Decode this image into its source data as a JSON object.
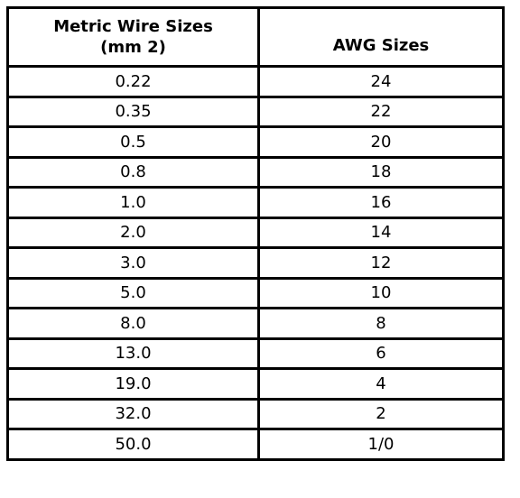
{
  "table": {
    "header": [
      [
        "Metric Wire Sizes",
        "(mm 2)"
      ],
      [
        "AWG Sizes"
      ]
    ],
    "rows": [
      [
        "0.22",
        "24"
      ],
      [
        "0.35",
        "22"
      ],
      [
        "0.5",
        "20"
      ],
      [
        "0.8",
        "18"
      ],
      [
        "1.0",
        "16"
      ],
      [
        "2.0",
        "14"
      ],
      [
        "3.0",
        "12"
      ],
      [
        "5.0",
        "10"
      ],
      [
        "8.0",
        "8"
      ],
      [
        "13.0",
        "6"
      ],
      [
        "19.0",
        "4"
      ],
      [
        "32.0",
        "2"
      ],
      [
        "50.0",
        "1/0"
      ]
    ]
  }
}
